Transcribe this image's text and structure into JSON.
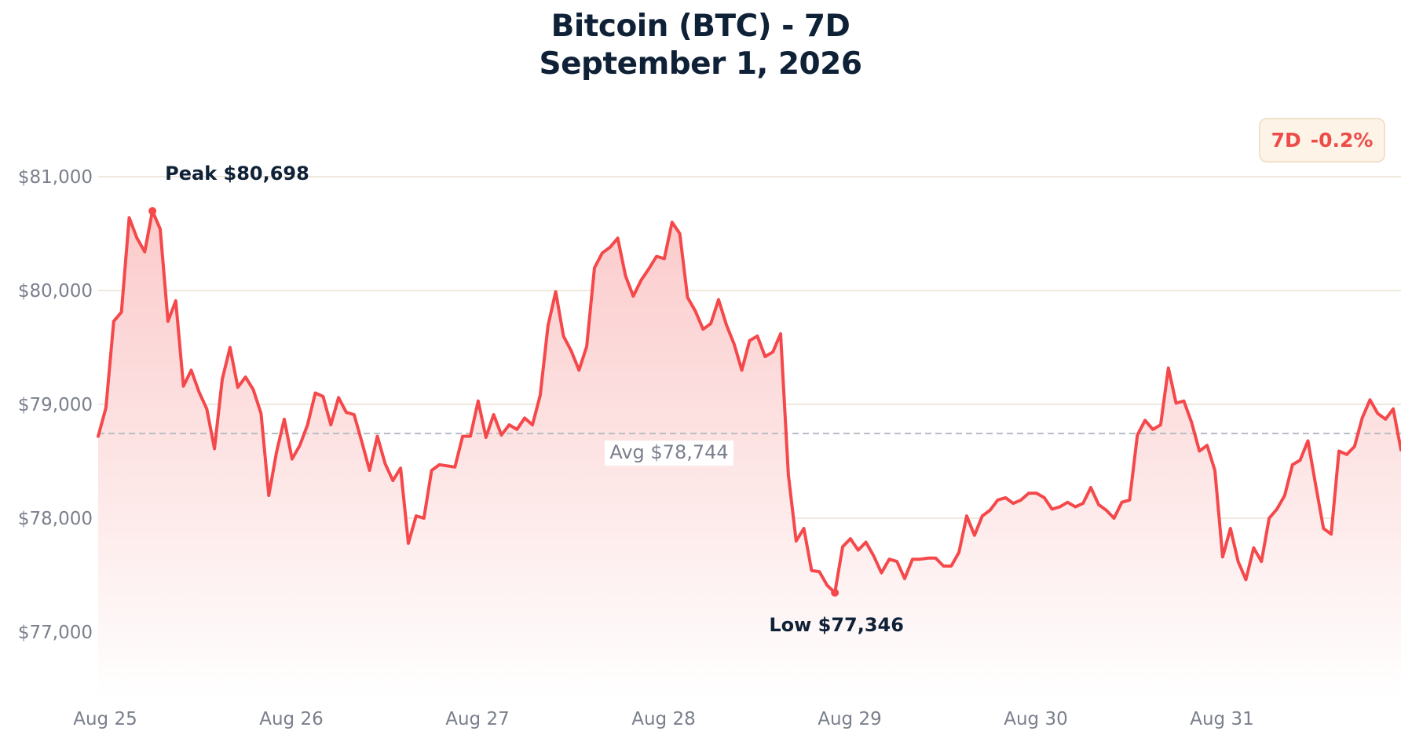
{
  "title": {
    "line1": "Bitcoin (BTC) - 7D",
    "line2": "September 1, 2026"
  },
  "badge": {
    "period": "7D",
    "change": "-0.2%"
  },
  "colors": {
    "line": "#f5484b",
    "fill_top": "#fbc8c8",
    "grid": "#efe9dd",
    "avg_line": "#b8bcc5",
    "title": "#0f2137",
    "badge_text": "#ee4b4b",
    "badge_bg": "#fdf3e6"
  },
  "chart_data": {
    "type": "area",
    "title": "Bitcoin (BTC) - 7D",
    "subtitle": "September 1, 2026",
    "xlabel": "",
    "ylabel": "",
    "ylim": [
      76400,
      81250
    ],
    "yticks": [
      77000,
      78000,
      79000,
      80000,
      81000
    ],
    "ytick_labels": [
      "$77,000",
      "$78,000",
      "$79,000",
      "$80,000",
      "$81,000"
    ],
    "x_range": [
      0,
      168
    ],
    "xticks": [
      0,
      24,
      48,
      72,
      96,
      120,
      144
    ],
    "xtick_labels": [
      "Aug 25",
      "Aug 26",
      "Aug 27",
      "Aug 28",
      "Aug 29",
      "Aug 30",
      "Aug 31"
    ],
    "grid": true,
    "series": [
      {
        "name": "BTC",
        "x": [
          0,
          1,
          2,
          3,
          4,
          5,
          6,
          7,
          8,
          9,
          10,
          11,
          12,
          13,
          14,
          15,
          16,
          17,
          18,
          19,
          20,
          21,
          22,
          23,
          24,
          25,
          26,
          27,
          28,
          29,
          30,
          31,
          32,
          33,
          34,
          35,
          36,
          37,
          38,
          39,
          40,
          41,
          42,
          43,
          44,
          45,
          46,
          47,
          48,
          49,
          50,
          51,
          52,
          53,
          54,
          55,
          56,
          57,
          58,
          59,
          60,
          61,
          62,
          63,
          64,
          65,
          66,
          67,
          68,
          69,
          70,
          71,
          72,
          73,
          74,
          75,
          76,
          77,
          78,
          79,
          80,
          81,
          82,
          83,
          84,
          85,
          86,
          87,
          88,
          89,
          90,
          91,
          92,
          93,
          94,
          95,
          96,
          97,
          98,
          99,
          100,
          101,
          102,
          103,
          104,
          105,
          106,
          107,
          108,
          109,
          110,
          111,
          112,
          113,
          114,
          115,
          116,
          117,
          118,
          119,
          120,
          121,
          122,
          123,
          124,
          125,
          126,
          127,
          128,
          129,
          130,
          131,
          132,
          133,
          134,
          135,
          136,
          137,
          138,
          139,
          140,
          141,
          142,
          143,
          144,
          145,
          146,
          147,
          148,
          149,
          150,
          151,
          152,
          153,
          154,
          155,
          156,
          157,
          158,
          159,
          160,
          161,
          162,
          163,
          164,
          165,
          166,
          167,
          168
        ],
        "values": [
          78720,
          78970,
          79730,
          79810,
          80640,
          80460,
          80340,
          80698,
          80540,
          79730,
          79910,
          79160,
          79300,
          79110,
          78960,
          78610,
          79220,
          79500,
          79150,
          79240,
          79130,
          78920,
          78200,
          78580,
          78870,
          78520,
          78640,
          78820,
          79100,
          79070,
          78820,
          79060,
          78930,
          78910,
          78670,
          78420,
          78720,
          78480,
          78330,
          78440,
          77780,
          78020,
          78000,
          78420,
          78470,
          78460,
          78450,
          78720,
          78720,
          79030,
          78710,
          78910,
          78730,
          78820,
          78780,
          78880,
          78820,
          79080,
          79690,
          79990,
          79600,
          79470,
          79300,
          79510,
          80200,
          80330,
          80380,
          80460,
          80130,
          79950,
          80090,
          80190,
          80300,
          80280,
          80600,
          80500,
          79940,
          79820,
          79660,
          79710,
          79920,
          79700,
          79530,
          79300,
          79560,
          79600,
          79420,
          79460,
          79620,
          78380,
          77800,
          77910,
          77540,
          77530,
          77410,
          77346,
          77750,
          77820,
          77720,
          77790,
          77670,
          77520,
          77640,
          77620,
          77470,
          77640,
          77640,
          77650,
          77650,
          77580,
          77580,
          77700,
          78020,
          77850,
          78020,
          78070,
          78160,
          78180,
          78130,
          78160,
          78220,
          78220,
          78180,
          78080,
          78100,
          78140,
          78100,
          78130,
          78270,
          78120,
          78070,
          78000,
          78140,
          78160,
          78730,
          78860,
          78780,
          78820,
          79320,
          79010,
          79030,
          78840,
          78590,
          78640,
          78420,
          77660,
          77910,
          77620,
          77460,
          77740,
          77620,
          78000,
          78080,
          78200,
          78470,
          78510,
          78680,
          78290,
          77910,
          77860,
          78590,
          78560,
          78630,
          78880,
          79040,
          78920,
          78870,
          78960,
          78600
        ]
      }
    ],
    "average": {
      "value": 78744,
      "label": "Avg $78,744"
    },
    "annotations": {
      "peak": {
        "x": 7,
        "value": 80698,
        "label": "Peak $80,698"
      },
      "low": {
        "x": 95,
        "value": 77346,
        "label": "Low $77,346"
      }
    }
  }
}
